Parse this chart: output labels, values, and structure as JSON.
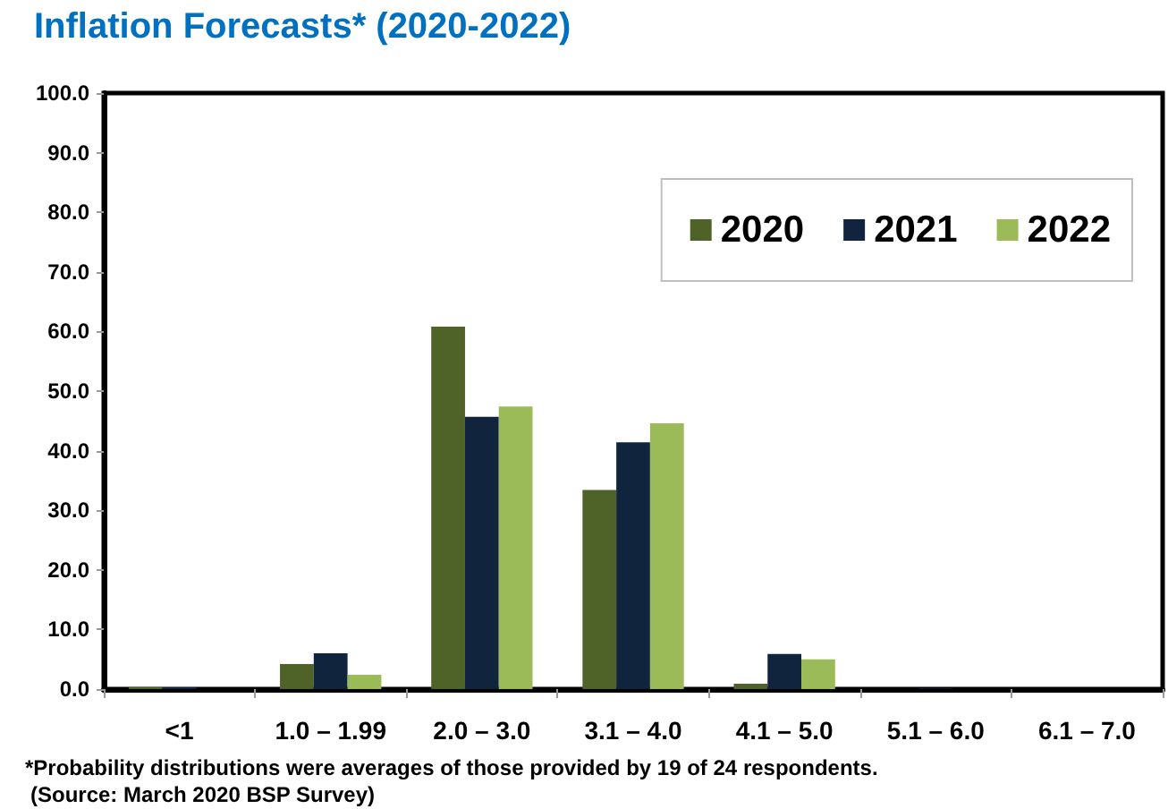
{
  "chart_data": {
    "type": "bar",
    "title": "Inflation Forecasts* (2020-2022)",
    "categories": [
      "<1",
      "1.0 – 1.99",
      "2.0 – 3.0",
      "3.1 – 4.0",
      "4.1 – 5.0",
      "5.1 – 6.0",
      "6.1 – 7.0"
    ],
    "series": [
      {
        "name": "2020",
        "color": "#4f6228",
        "values": [
          0.3,
          4.2,
          60.8,
          33.4,
          0.9,
          0,
          0
        ]
      },
      {
        "name": "2021",
        "color": "#10243e",
        "values": [
          0.3,
          6.0,
          45.7,
          41.4,
          5.9,
          0.1,
          0
        ]
      },
      {
        "name": "2022",
        "color": "#9bbb59",
        "values": [
          0,
          2.4,
          47.4,
          44.6,
          5.0,
          0,
          0
        ]
      }
    ],
    "ylim": [
      0,
      100
    ],
    "yticks": [
      {
        "value": 0,
        "label": "0.0"
      },
      {
        "value": 10,
        "label": "10.0"
      },
      {
        "value": 20,
        "label": "20.0"
      },
      {
        "value": 30,
        "label": "30.0"
      },
      {
        "value": 40,
        "label": "40.0"
      },
      {
        "value": 50,
        "label": "50.0"
      },
      {
        "value": 60,
        "label": "60.0"
      },
      {
        "value": 70,
        "label": "70.0"
      },
      {
        "value": 80,
        "label": "80.0"
      },
      {
        "value": 90,
        "label": "90.0"
      },
      {
        "value": 100,
        "label": "100.0"
      }
    ],
    "legend": "top right",
    "annotations": [
      "*Probability distributions were averages of those provided by 19 of 24 respondents.",
      "(Source: March 2020 BSP Survey)"
    ]
  }
}
